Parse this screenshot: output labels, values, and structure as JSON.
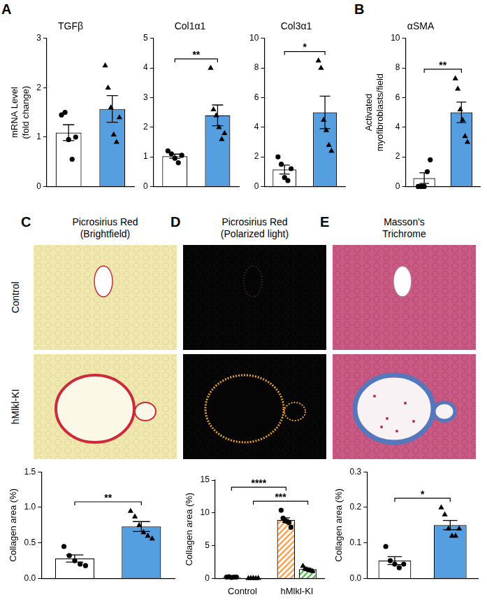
{
  "chart_data": [
    {
      "panel": "A",
      "type": "bar",
      "title": "TGFβ",
      "y_label": [
        "mRNA Level",
        "(fold change)"
      ],
      "categories": [
        null,
        null
      ],
      "values": [
        1.09,
        1.57
      ],
      "errors": [
        0.16,
        0.27
      ],
      "colors": [
        "#ffffff",
        "#559fe0"
      ],
      "point_markers": [
        "circle",
        "triangle"
      ],
      "points": [
        [
          1.45,
          1.5,
          0.95,
          0.55,
          1.0
        ],
        [
          2.45,
          2.0,
          1.6,
          1.05,
          0.9,
          1.4
        ]
      ],
      "ylim": [
        0,
        3
      ],
      "yticks": [
        0,
        1,
        2,
        3
      ],
      "grid": false,
      "significance": []
    },
    {
      "type": "bar",
      "title": "Col1α1",
      "categories": [
        null,
        null
      ],
      "values": [
        1.02,
        2.4
      ],
      "errors": [
        0.07,
        0.35
      ],
      "colors": [
        "#ffffff",
        "#559fe0"
      ],
      "point_markers": [
        "circle",
        "triangle"
      ],
      "points": [
        [
          1.2,
          1.1,
          0.95,
          0.8,
          1.05
        ],
        [
          4.0,
          2.6,
          2.4,
          2.0,
          1.6,
          1.8
        ]
      ],
      "ylim": [
        0,
        5
      ],
      "yticks": [
        0,
        1,
        2,
        3,
        4,
        5
      ],
      "grid": false,
      "significance": [
        {
          "from": 0,
          "to": 1,
          "label": "**"
        }
      ]
    },
    {
      "type": "bar",
      "title": "Col3α1",
      "categories": [
        null,
        null
      ],
      "values": [
        1.14,
        5.0
      ],
      "errors": [
        0.3,
        1.1
      ],
      "colors": [
        "#ffffff",
        "#559fe0"
      ],
      "point_markers": [
        "circle",
        "triangle"
      ],
      "points": [
        [
          2.0,
          1.5,
          0.6,
          0.4,
          1.2
        ],
        [
          8.5,
          8.0,
          4.5,
          3.8,
          2.8,
          2.4
        ]
      ],
      "ylim": [
        0,
        10
      ],
      "yticks": [
        0,
        2,
        4,
        6,
        8,
        10
      ],
      "grid": false,
      "significance": [
        {
          "from": 0,
          "to": 1,
          "label": "*"
        }
      ]
    },
    {
      "panel": "B",
      "type": "bar",
      "title": "αSMA",
      "y_label": [
        "Activated",
        "myofibroblasts/field"
      ],
      "categories": [
        null,
        null
      ],
      "values": [
        0.56,
        5.0
      ],
      "errors": [
        0.36,
        0.7
      ],
      "colors": [
        "#ffffff",
        "#559fe0"
      ],
      "point_markers": [
        "circle",
        "triangle"
      ],
      "points": [
        [
          0,
          0,
          0,
          1.0,
          1.8
        ],
        [
          7.3,
          6.6,
          5.2,
          4.5,
          3.4,
          3.0
        ]
      ],
      "ylim": [
        0,
        10
      ],
      "yticks": [
        0,
        2,
        4,
        6,
        8,
        10
      ],
      "grid": false,
      "significance": [
        {
          "from": 0,
          "to": 1,
          "label": "**"
        }
      ]
    },
    {
      "type": "bar",
      "y_label": "Collagen area (%)",
      "categories": [
        null,
        null
      ],
      "values": [
        0.28,
        0.73
      ],
      "errors": [
        0.05,
        0.07
      ],
      "colors": [
        "#ffffff",
        "#559fe0"
      ],
      "point_markers": [
        "circle",
        "triangle"
      ],
      "points": [
        [
          0.45,
          0.32,
          0.25,
          0.2,
          0.18
        ],
        [
          0.95,
          0.87,
          0.75,
          0.65,
          0.6,
          0.56
        ]
      ],
      "ylim": [
        0,
        1.5
      ],
      "yticks": [
        {
          "value": 0,
          "label": "0.0"
        },
        0.5,
        {
          "value": 1,
          "label": "1.0"
        },
        1.5
      ],
      "grid": false,
      "significance": [
        {
          "from": 0,
          "to": 1,
          "label": "**"
        }
      ]
    },
    {
      "type": "bar",
      "y_label": "Collagen area (%)",
      "categories": [
        "Control",
        "hMlkl-KI"
      ],
      "series": [
        {
          "colors": [
            "#ffffff",
            "#f5a55a"
          ],
          "marker": "circle",
          "values": [
            0.2,
            8.9
          ],
          "errors": [
            0.02,
            0.35
          ],
          "points": [
            [
              0.2,
              0.25,
              0.15,
              0.2,
              0.2
            ],
            [
              10.4,
              9.2,
              8.8,
              8.7,
              8.5,
              7.8
            ]
          ]
        },
        {
          "colors": [
            "#ffffff",
            "#5cb85c"
          ],
          "marker": "triangle",
          "values": [
            0.06,
            1.4
          ],
          "errors": [
            0.01,
            0.12
          ],
          "points": [
            [
              0.05,
              0.07,
              0.06,
              0.05,
              0.07
            ],
            [
              1.9,
              1.5,
              1.4,
              1.3,
              1.2,
              1.1
            ]
          ]
        }
      ],
      "ylim": [
        0,
        15
      ],
      "yticks": [
        0,
        5,
        10,
        15
      ],
      "grid": false,
      "significance": [
        {
          "from": 1,
          "to": 3,
          "label": "***"
        },
        {
          "from": 0,
          "to": 2,
          "label": "****"
        }
      ]
    },
    {
      "type": "bar",
      "y_label": "Collagen area (%)",
      "categories": [
        null,
        null
      ],
      "values": [
        0.05,
        0.15
      ],
      "errors": [
        0.011,
        0.013
      ],
      "colors": [
        "#ffffff",
        "#559fe0"
      ],
      "point_markers": [
        "circle",
        "triangle"
      ],
      "points": [
        [
          0.09,
          0.05,
          0.04,
          0.03,
          0.04
        ],
        [
          0.2,
          0.18,
          0.14,
          0.12,
          0.12,
          0.14
        ]
      ],
      "ylim": [
        0,
        0.3
      ],
      "yticks": [
        {
          "value": 0,
          "label": "0.0"
        },
        0.1,
        0.2,
        0.3
      ],
      "grid": false,
      "significance": [
        {
          "from": 0,
          "to": 1,
          "label": "*"
        }
      ]
    }
  ],
  "images": {
    "row_labels": [
      "Control",
      "hMlkl-KI"
    ],
    "columns": [
      {
        "panel": "C",
        "title": [
          "Picrosirius Red",
          "(Brightfield)"
        ]
      },
      {
        "panel": "D",
        "title": [
          "Picrosirius Red",
          "(Polarized light)"
        ]
      },
      {
        "panel": "E",
        "title": [
          "Masson's",
          "Trichrome"
        ]
      }
    ]
  }
}
